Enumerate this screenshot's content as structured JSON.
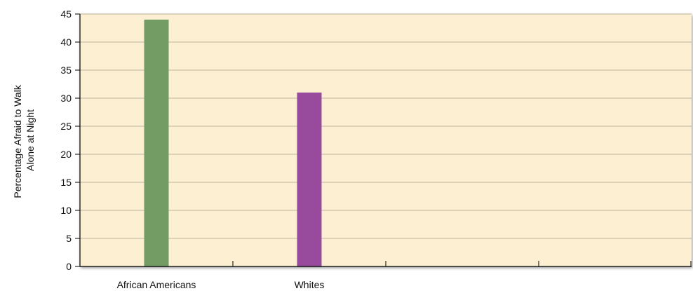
{
  "chart_data": {
    "type": "bar",
    "categories": [
      "African Americans",
      "Whites"
    ],
    "values": [
      44,
      31
    ],
    "bar_colors": [
      "#739c65",
      "#984b9c"
    ],
    "ylabel_lines": [
      "Percentage Afraid to Walk",
      "Alone at Night"
    ],
    "xlabel": "",
    "title": "",
    "ylim": [
      0,
      45
    ],
    "yticks": [
      "0",
      "5",
      "10",
      "15",
      "20",
      "25",
      "30",
      "35",
      "40",
      "45"
    ],
    "grid": true,
    "plot_background": "#fdf0d2",
    "gridline_color": "#c8c0a8"
  }
}
